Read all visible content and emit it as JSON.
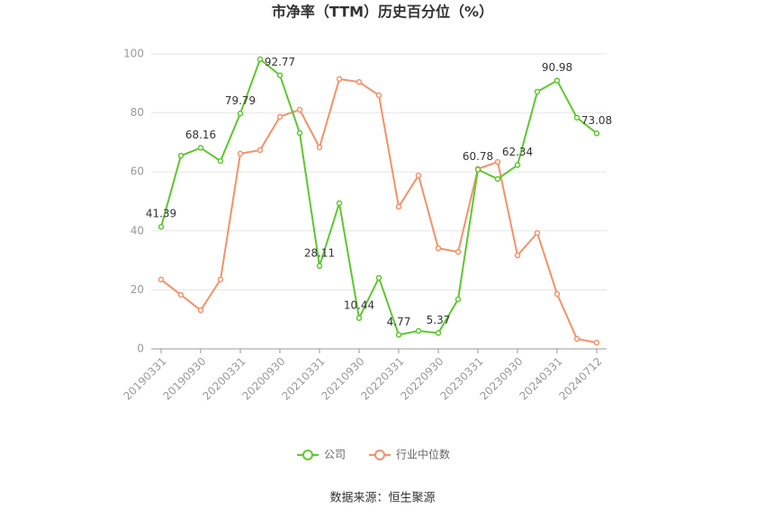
{
  "chart_data": {
    "type": "line",
    "title": "市净率（TTM）历史百分位（%）",
    "source": "数据来源：恒生聚源",
    "categories": [
      "20190331",
      null,
      "20190930",
      null,
      "20200331",
      null,
      "20200930",
      null,
      "20210331",
      null,
      "20210930",
      null,
      "20220331",
      null,
      "20220930",
      null,
      "20230331",
      null,
      "20230930",
      null,
      "20240331",
      null,
      "20240712"
    ],
    "series": [
      {
        "name": "公司",
        "color": "#5ec72e",
        "values": [
          41.39,
          65.5,
          68.16,
          63.7,
          79.79,
          98.2,
          92.77,
          73.2,
          28.11,
          49.4,
          10.44,
          24.1,
          4.77,
          6.1,
          5.37,
          16.8,
          60.78,
          57.6,
          62.34,
          87.2,
          90.98,
          78.4,
          73.08
        ]
      },
      {
        "name": "行业中位数",
        "color": "#f39268",
        "values": [
          23.5,
          18.3,
          13.1,
          23.5,
          66.2,
          67.4,
          78.7,
          81.1,
          68.3,
          91.5,
          90.5,
          86.0,
          48.2,
          58.8,
          34.1,
          32.9,
          61.0,
          63.4,
          31.7,
          39.3,
          18.6,
          3.4,
          2.1
        ]
      }
    ],
    "ylim": [
      0,
      100
    ],
    "yticks": [
      0,
      20,
      40,
      60,
      80,
      100
    ],
    "grid": true
  }
}
